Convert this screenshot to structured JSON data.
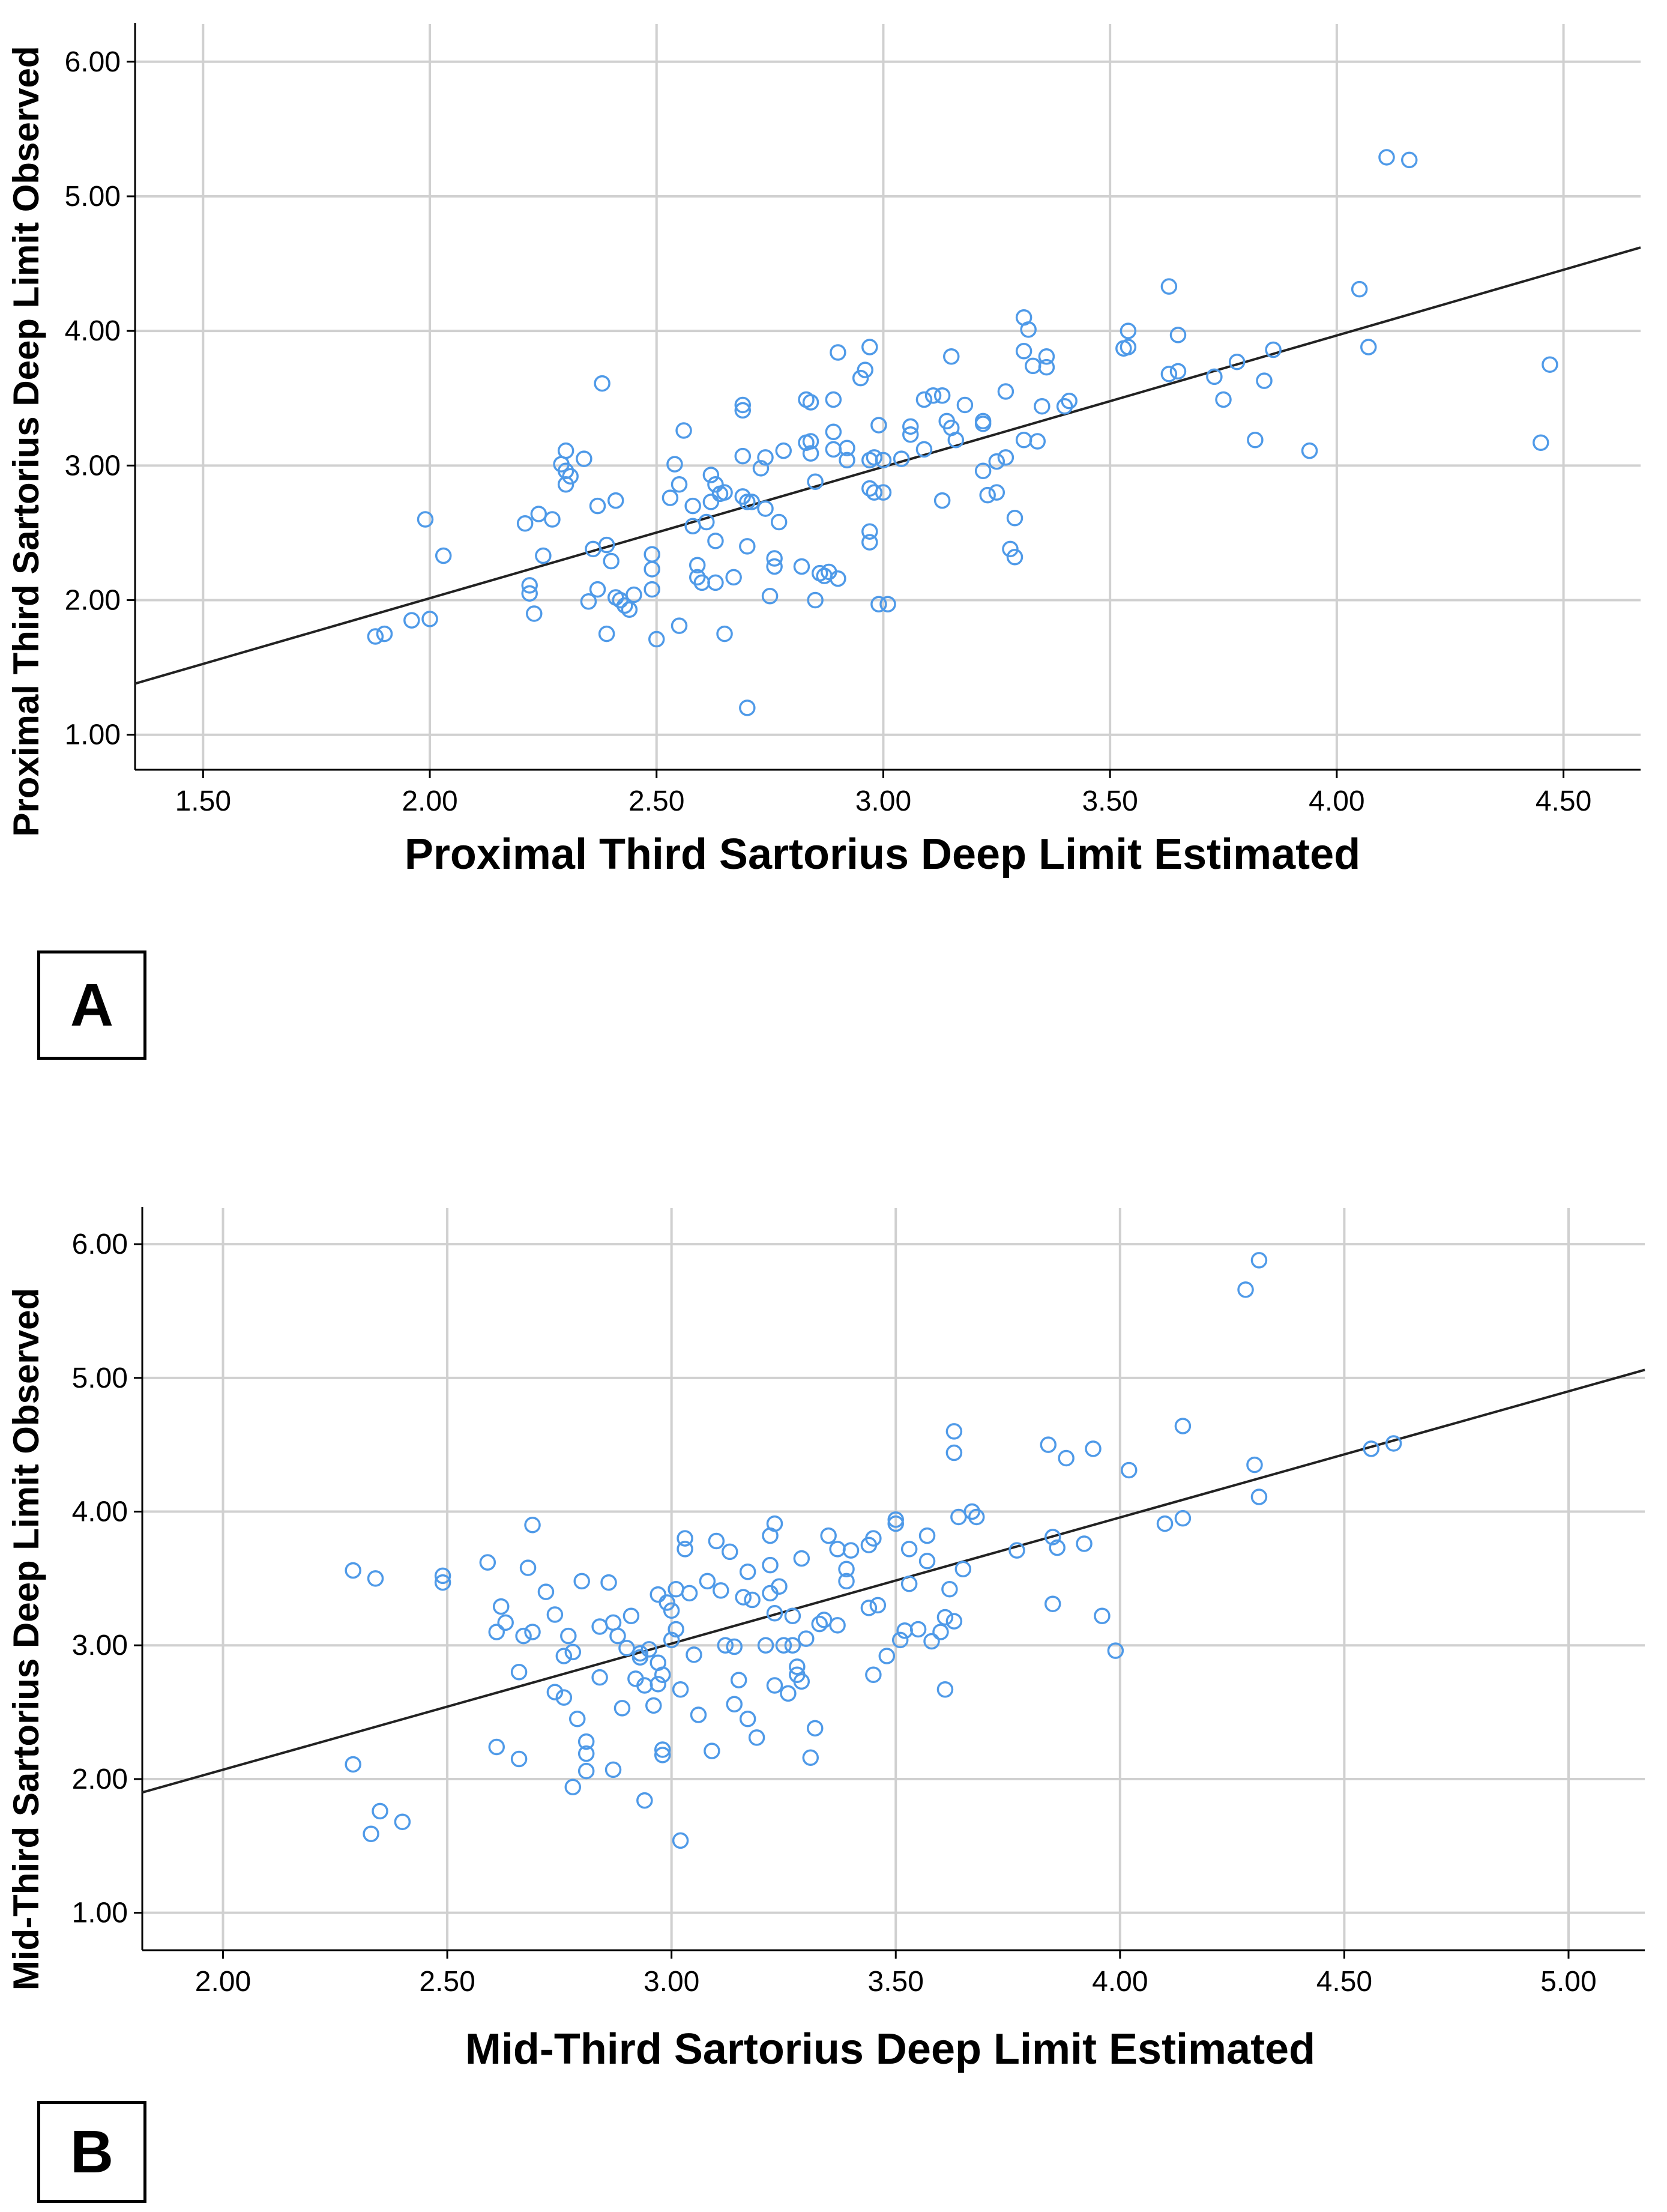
{
  "chart_data": [
    {
      "type": "scatter",
      "panel": "A",
      "title": "",
      "xlabel": "Proximal Third Sartorius Deep Limit Estimated",
      "ylabel": "Proximal Third Sartorius Deep Limit Observed",
      "xlim": [
        1.35,
        4.67
      ],
      "ylim": [
        0.74,
        6.28
      ],
      "xticks": [
        1.5,
        2.0,
        2.5,
        3.0,
        3.5,
        4.0,
        4.5
      ],
      "yticks": [
        1.0,
        2.0,
        3.0,
        4.0,
        5.0,
        6.0
      ],
      "xtick_labels": [
        "1.50",
        "2.00",
        "2.50",
        "3.00",
        "3.50",
        "4.00",
        "4.50"
      ],
      "ytick_labels": [
        "1.00",
        "2.00",
        "3.00",
        "4.00",
        "5.00",
        "6.00"
      ],
      "grid": true,
      "fit_line": {
        "x": [
          1.35,
          4.67
        ],
        "y": [
          1.38,
          4.62
        ]
      },
      "points": [
        [
          1.88,
          1.73
        ],
        [
          1.9,
          1.75
        ],
        [
          1.96,
          1.85
        ],
        [
          1.99,
          2.6
        ],
        [
          2.0,
          1.86
        ],
        [
          2.03,
          2.33
        ],
        [
          2.21,
          2.57
        ],
        [
          2.22,
          2.11
        ],
        [
          2.22,
          2.05
        ],
        [
          2.23,
          1.9
        ],
        [
          2.24,
          2.64
        ],
        [
          2.25,
          2.33
        ],
        [
          2.27,
          2.6
        ],
        [
          2.29,
          3.01
        ],
        [
          2.3,
          2.96
        ],
        [
          2.3,
          2.86
        ],
        [
          2.31,
          2.92
        ],
        [
          2.3,
          3.11
        ],
        [
          2.34,
          3.05
        ],
        [
          2.35,
          1.99
        ],
        [
          2.36,
          2.38
        ],
        [
          2.37,
          2.08
        ],
        [
          2.37,
          2.7
        ],
        [
          2.38,
          3.61
        ],
        [
          2.39,
          1.75
        ],
        [
          2.39,
          2.41
        ],
        [
          2.4,
          2.29
        ],
        [
          2.41,
          2.02
        ],
        [
          2.42,
          2.0
        ],
        [
          2.41,
          2.74
        ],
        [
          2.43,
          1.96
        ],
        [
          2.44,
          1.93
        ],
        [
          2.45,
          2.04
        ],
        [
          2.49,
          2.23
        ],
        [
          2.49,
          2.34
        ],
        [
          2.49,
          2.08
        ],
        [
          2.5,
          1.71
        ],
        [
          2.53,
          2.76
        ],
        [
          2.54,
          3.01
        ],
        [
          2.55,
          2.86
        ],
        [
          2.55,
          1.81
        ],
        [
          2.56,
          3.26
        ],
        [
          2.58,
          2.7
        ],
        [
          2.58,
          2.55
        ],
        [
          2.59,
          2.26
        ],
        [
          2.59,
          2.17
        ],
        [
          2.6,
          2.13
        ],
        [
          2.61,
          2.58
        ],
        [
          2.62,
          2.93
        ],
        [
          2.62,
          2.73
        ],
        [
          2.63,
          2.86
        ],
        [
          2.63,
          2.44
        ],
        [
          2.63,
          2.13
        ],
        [
          2.64,
          2.79
        ],
        [
          2.65,
          2.8
        ],
        [
          2.65,
          1.75
        ],
        [
          2.67,
          2.17
        ],
        [
          2.69,
          3.41
        ],
        [
          2.69,
          3.45
        ],
        [
          2.69,
          3.07
        ],
        [
          2.69,
          2.77
        ],
        [
          2.7,
          2.73
        ],
        [
          2.7,
          2.4
        ],
        [
          2.7,
          1.2
        ],
        [
          2.71,
          2.73
        ],
        [
          2.73,
          2.98
        ],
        [
          2.74,
          3.06
        ],
        [
          2.74,
          2.68
        ],
        [
          2.75,
          2.03
        ],
        [
          2.76,
          2.25
        ],
        [
          2.76,
          2.31
        ],
        [
          2.77,
          2.58
        ],
        [
          2.78,
          3.11
        ],
        [
          2.82,
          2.25
        ],
        [
          2.83,
          3.49
        ],
        [
          2.83,
          3.17
        ],
        [
          2.84,
          3.47
        ],
        [
          2.84,
          3.18
        ],
        [
          2.84,
          3.09
        ],
        [
          2.85,
          2.0
        ],
        [
          2.85,
          2.88
        ],
        [
          2.86,
          2.2
        ],
        [
          2.87,
          2.18
        ],
        [
          2.88,
          2.21
        ],
        [
          2.89,
          3.49
        ],
        [
          2.89,
          3.25
        ],
        [
          2.89,
          3.12
        ],
        [
          2.9,
          3.84
        ],
        [
          2.9,
          2.16
        ],
        [
          2.92,
          3.13
        ],
        [
          2.92,
          3.04
        ],
        [
          2.95,
          3.65
        ],
        [
          2.96,
          3.71
        ],
        [
          2.97,
          3.88
        ],
        [
          2.97,
          2.51
        ],
        [
          2.97,
          2.43
        ],
        [
          2.97,
          3.04
        ],
        [
          2.97,
          2.83
        ],
        [
          2.98,
          3.06
        ],
        [
          2.98,
          2.8
        ],
        [
          2.99,
          3.3
        ],
        [
          2.99,
          1.97
        ],
        [
          3.0,
          2.8
        ],
        [
          3.0,
          3.04
        ],
        [
          3.01,
          1.97
        ],
        [
          3.04,
          3.05
        ],
        [
          3.06,
          3.23
        ],
        [
          3.06,
          3.29
        ],
        [
          3.09,
          3.49
        ],
        [
          3.09,
          3.12
        ],
        [
          3.11,
          3.52
        ],
        [
          3.13,
          3.52
        ],
        [
          3.13,
          2.74
        ],
        [
          3.14,
          3.33
        ],
        [
          3.15,
          3.81
        ],
        [
          3.15,
          3.28
        ],
        [
          3.16,
          3.19
        ],
        [
          3.18,
          3.45
        ],
        [
          3.22,
          3.31
        ],
        [
          3.22,
          3.33
        ],
        [
          3.22,
          2.96
        ],
        [
          3.23,
          2.78
        ],
        [
          3.25,
          2.8
        ],
        [
          3.25,
          3.03
        ],
        [
          3.27,
          3.55
        ],
        [
          3.27,
          3.06
        ],
        [
          3.28,
          2.38
        ],
        [
          3.29,
          2.61
        ],
        [
          3.29,
          2.32
        ],
        [
          3.31,
          3.85
        ],
        [
          3.31,
          3.19
        ],
        [
          3.31,
          4.1
        ],
        [
          3.32,
          4.01
        ],
        [
          3.33,
          3.74
        ],
        [
          3.34,
          3.18
        ],
        [
          3.35,
          3.44
        ],
        [
          3.36,
          3.81
        ],
        [
          3.36,
          3.73
        ],
        [
          3.4,
          3.44
        ],
        [
          3.41,
          3.48
        ],
        [
          3.53,
          3.87
        ],
        [
          3.54,
          3.88
        ],
        [
          3.54,
          4.0
        ],
        [
          3.63,
          3.68
        ],
        [
          3.63,
          4.33
        ],
        [
          3.65,
          3.97
        ],
        [
          3.65,
          3.7
        ],
        [
          3.73,
          3.66
        ],
        [
          3.75,
          3.49
        ],
        [
          3.78,
          3.77
        ],
        [
          3.82,
          3.19
        ],
        [
          3.84,
          3.63
        ],
        [
          3.86,
          3.86
        ],
        [
          3.94,
          3.11
        ],
        [
          4.05,
          4.31
        ],
        [
          4.07,
          3.88
        ],
        [
          4.11,
          5.29
        ],
        [
          4.16,
          5.27
        ],
        [
          4.45,
          3.17
        ],
        [
          4.47,
          3.75
        ]
      ]
    },
    {
      "type": "scatter",
      "panel": "B",
      "title": "",
      "xlabel": "Mid-Third Sartorius Deep Limit Estimated",
      "ylabel": "Mid-Third Sartorius Deep Limit Observed",
      "xlim": [
        1.82,
        5.17
      ],
      "ylim": [
        0.72,
        6.27
      ],
      "xticks": [
        2.0,
        2.5,
        3.0,
        3.5,
        4.0,
        4.5,
        5.0
      ],
      "yticks": [
        1.0,
        2.0,
        3.0,
        4.0,
        5.0,
        6.0
      ],
      "xtick_labels": [
        "2.00",
        "2.50",
        "3.00",
        "3.50",
        "4.00",
        "4.50",
        "5.00"
      ],
      "ytick_labels": [
        "1.00",
        "2.00",
        "3.00",
        "4.00",
        "5.00",
        "6.00"
      ],
      "grid": true,
      "fit_line": {
        "x": [
          1.82,
          5.17
        ],
        "y": [
          1.9,
          5.06
        ]
      },
      "points": [
        [
          2.29,
          3.56
        ],
        [
          2.29,
          2.11
        ],
        [
          2.34,
          3.5
        ],
        [
          2.33,
          1.59
        ],
        [
          2.35,
          1.76
        ],
        [
          2.4,
          1.68
        ],
        [
          2.49,
          3.52
        ],
        [
          2.49,
          3.47
        ],
        [
          2.59,
          3.62
        ],
        [
          2.61,
          2.24
        ],
        [
          2.61,
          3.1
        ],
        [
          2.62,
          3.29
        ],
        [
          2.63,
          3.17
        ],
        [
          2.66,
          2.15
        ],
        [
          2.66,
          2.8
        ],
        [
          2.67,
          3.07
        ],
        [
          2.68,
          3.58
        ],
        [
          2.69,
          3.1
        ],
        [
          2.69,
          3.9
        ],
        [
          2.72,
          3.4
        ],
        [
          2.74,
          3.23
        ],
        [
          2.74,
          2.65
        ],
        [
          2.76,
          2.61
        ],
        [
          2.76,
          2.92
        ],
        [
          2.77,
          3.07
        ],
        [
          2.78,
          2.95
        ],
        [
          2.78,
          1.94
        ],
        [
          2.79,
          2.45
        ],
        [
          2.8,
          3.48
        ],
        [
          2.81,
          2.28
        ],
        [
          2.81,
          2.06
        ],
        [
          2.81,
          2.19
        ],
        [
          2.84,
          2.76
        ],
        [
          2.84,
          3.14
        ],
        [
          2.86,
          3.47
        ],
        [
          2.87,
          3.17
        ],
        [
          2.87,
          2.07
        ],
        [
          2.88,
          3.07
        ],
        [
          2.89,
          2.53
        ],
        [
          2.9,
          2.98
        ],
        [
          2.91,
          3.22
        ],
        [
          2.92,
          2.75
        ],
        [
          2.93,
          2.91
        ],
        [
          2.93,
          2.94
        ],
        [
          2.94,
          2.7
        ],
        [
          2.94,
          1.84
        ],
        [
          2.95,
          2.97
        ],
        [
          2.96,
          2.55
        ],
        [
          2.97,
          2.71
        ],
        [
          2.97,
          2.87
        ],
        [
          2.97,
          3.38
        ],
        [
          2.98,
          2.78
        ],
        [
          2.98,
          2.22
        ],
        [
          2.98,
          2.18
        ],
        [
          2.99,
          3.32
        ],
        [
          3.0,
          3.26
        ],
        [
          3.0,
          3.04
        ],
        [
          3.01,
          3.42
        ],
        [
          3.01,
          3.12
        ],
        [
          3.02,
          1.54
        ],
        [
          3.02,
          2.67
        ],
        [
          3.03,
          3.72
        ],
        [
          3.03,
          3.8
        ],
        [
          3.04,
          3.39
        ],
        [
          3.05,
          2.93
        ],
        [
          3.06,
          2.48
        ],
        [
          3.08,
          3.48
        ],
        [
          3.09,
          2.21
        ],
        [
          3.1,
          3.78
        ],
        [
          3.11,
          3.41
        ],
        [
          3.12,
          3.0
        ],
        [
          3.13,
          3.7
        ],
        [
          3.14,
          2.56
        ],
        [
          3.14,
          2.99
        ],
        [
          3.15,
          2.74
        ],
        [
          3.16,
          3.36
        ],
        [
          3.17,
          3.55
        ],
        [
          3.17,
          2.45
        ],
        [
          3.18,
          3.34
        ],
        [
          3.19,
          2.31
        ],
        [
          3.21,
          3.0
        ],
        [
          3.22,
          3.39
        ],
        [
          3.22,
          3.6
        ],
        [
          3.22,
          3.82
        ],
        [
          3.23,
          3.91
        ],
        [
          3.23,
          3.24
        ],
        [
          3.23,
          2.7
        ],
        [
          3.24,
          3.44
        ],
        [
          3.25,
          3.0
        ],
        [
          3.26,
          2.64
        ],
        [
          3.27,
          3.22
        ],
        [
          3.27,
          3.0
        ],
        [
          3.28,
          2.84
        ],
        [
          3.28,
          2.78
        ],
        [
          3.29,
          2.73
        ],
        [
          3.29,
          3.65
        ],
        [
          3.3,
          3.05
        ],
        [
          3.31,
          2.16
        ],
        [
          3.32,
          2.38
        ],
        [
          3.33,
          3.16
        ],
        [
          3.34,
          3.19
        ],
        [
          3.35,
          3.82
        ],
        [
          3.37,
          3.15
        ],
        [
          3.37,
          3.72
        ],
        [
          3.39,
          3.57
        ],
        [
          3.39,
          3.48
        ],
        [
          3.4,
          3.71
        ],
        [
          3.44,
          3.28
        ],
        [
          3.44,
          3.75
        ],
        [
          3.45,
          2.78
        ],
        [
          3.45,
          3.8
        ],
        [
          3.46,
          3.3
        ],
        [
          3.48,
          2.92
        ],
        [
          3.5,
          3.94
        ],
        [
          3.5,
          3.91
        ],
        [
          3.51,
          3.04
        ],
        [
          3.52,
          3.11
        ],
        [
          3.53,
          3.46
        ],
        [
          3.53,
          3.72
        ],
        [
          3.55,
          3.12
        ],
        [
          3.57,
          3.63
        ],
        [
          3.57,
          3.82
        ],
        [
          3.58,
          3.03
        ],
        [
          3.6,
          3.1
        ],
        [
          3.61,
          3.21
        ],
        [
          3.61,
          2.67
        ],
        [
          3.62,
          3.42
        ],
        [
          3.63,
          4.6
        ],
        [
          3.63,
          4.44
        ],
        [
          3.63,
          3.18
        ],
        [
          3.64,
          3.96
        ],
        [
          3.65,
          3.57
        ],
        [
          3.67,
          4.0
        ],
        [
          3.68,
          3.96
        ],
        [
          3.77,
          3.71
        ],
        [
          3.84,
          4.5
        ],
        [
          3.85,
          3.31
        ],
        [
          3.85,
          3.81
        ],
        [
          3.86,
          3.73
        ],
        [
          3.88,
          4.4
        ],
        [
          3.92,
          3.76
        ],
        [
          3.94,
          4.47
        ],
        [
          3.96,
          3.22
        ],
        [
          3.99,
          2.96
        ],
        [
          4.02,
          4.31
        ],
        [
          4.1,
          3.91
        ],
        [
          4.14,
          3.95
        ],
        [
          4.14,
          4.64
        ],
        [
          4.28,
          5.66
        ],
        [
          4.3,
          4.35
        ],
        [
          4.31,
          5.88
        ],
        [
          4.31,
          4.11
        ],
        [
          4.56,
          4.47
        ],
        [
          4.61,
          4.51
        ]
      ]
    }
  ],
  "panels": [
    {
      "label": "A"
    },
    {
      "label": "B"
    }
  ]
}
